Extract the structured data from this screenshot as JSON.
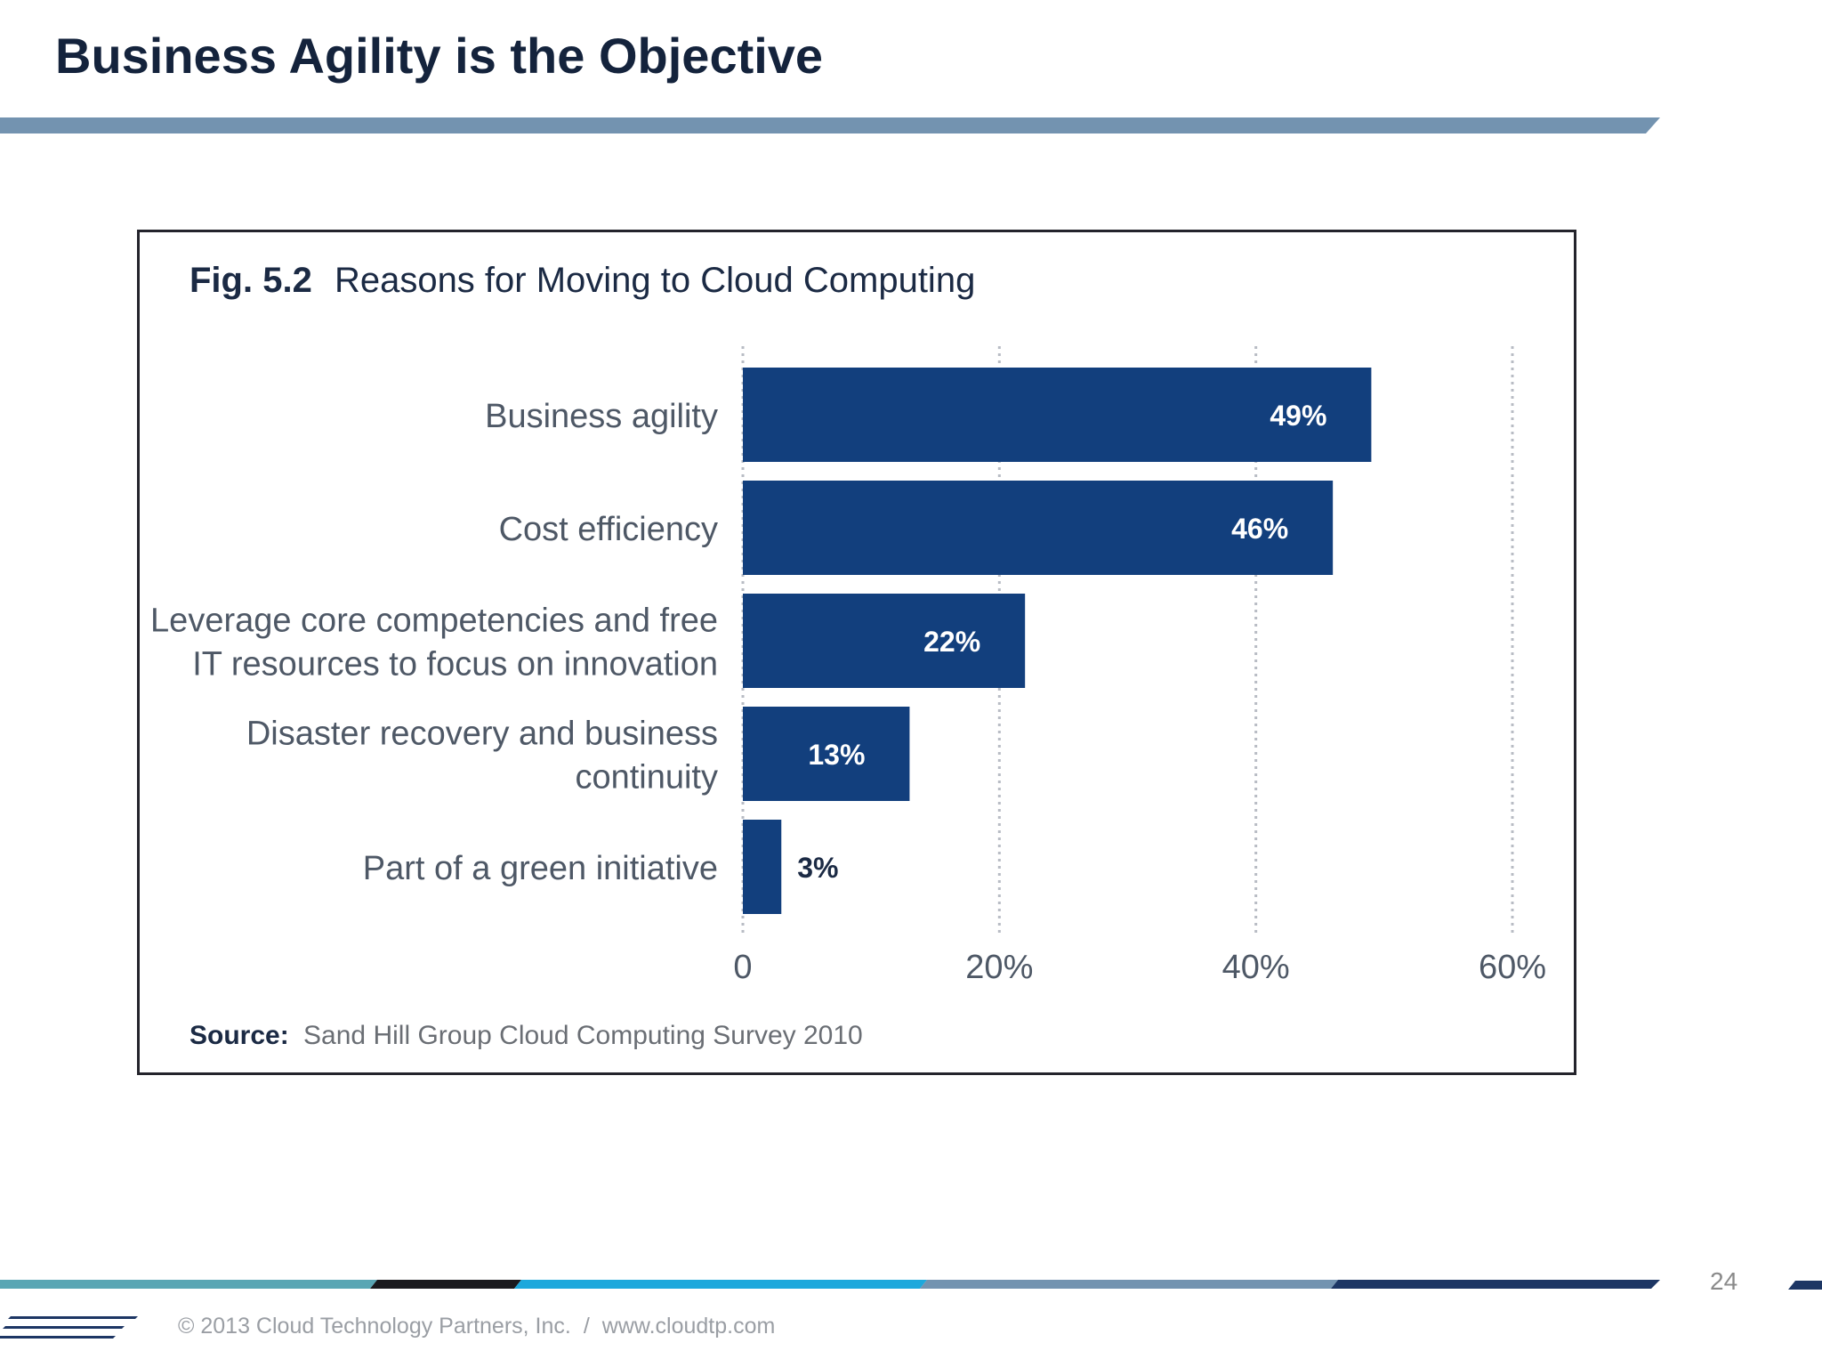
{
  "slide": {
    "title": "Business Agility is the Objective",
    "page_number": "24",
    "footer": {
      "copyright": "© 2013 Cloud Technology Partners, Inc.",
      "separator": "/",
      "website": "www.cloudtp.com"
    }
  },
  "colors": {
    "title": "#14233c",
    "bar": "#123f7d",
    "rule": "#7393b0"
  },
  "chart_data": {
    "type": "bar",
    "orientation": "horizontal",
    "title_prefix": "Fig. 5.2",
    "title": "Reasons for Moving to Cloud Computing",
    "categories": [
      [
        "Business agility"
      ],
      [
        "Cost efficiency"
      ],
      [
        "Leverage core competencies and free",
        "IT resources to focus on innovation"
      ],
      [
        "Disaster recovery and business",
        "continuity"
      ],
      [
        "Part of a green initiative"
      ]
    ],
    "values": [
      49,
      46,
      22,
      13,
      3
    ],
    "value_labels": [
      "49%",
      "46%",
      "22%",
      "13%",
      "3%"
    ],
    "xlim": [
      0,
      60
    ],
    "xticks": [
      0,
      20,
      40,
      60
    ],
    "xtick_labels": [
      "0",
      "20%",
      "40%",
      "60%"
    ],
    "grid": true,
    "source_label": "Source:",
    "source_text": "Sand Hill Group Cloud Computing Survey 2010"
  }
}
